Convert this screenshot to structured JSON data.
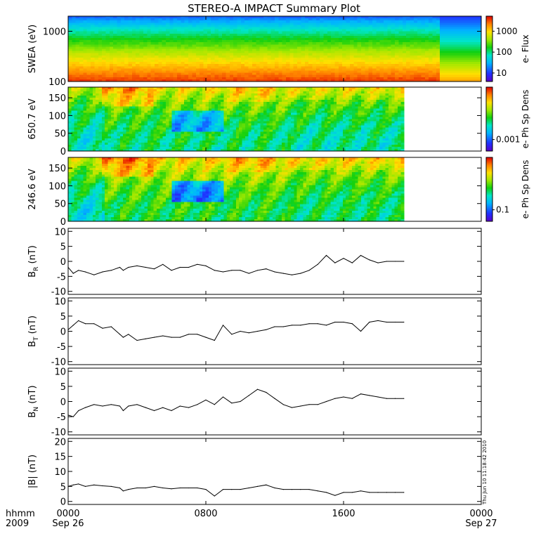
{
  "chart_data": {
    "type": "multi-panel",
    "title": "STEREO-A IMPACT Summary Plot",
    "stamp": "Thu Jun 10 11:18:42 2010",
    "x_axis": {
      "corner_labels": [
        "hhmm",
        "2009"
      ],
      "ticks": [
        {
          "hour": 0,
          "label": "0000",
          "date": "Sep 26"
        },
        {
          "hour": 8,
          "label": "0800",
          "date": ""
        },
        {
          "hour": 16,
          "label": "1600",
          "date": ""
        },
        {
          "hour": 24,
          "label": "0000",
          "date": "Sep 27"
        }
      ],
      "range_hours": [
        0,
        24
      ]
    },
    "panels": [
      {
        "type": "heatmap",
        "ylabel": "SWEA (eV)",
        "yscale": "log",
        "ylim": [
          100,
          2000
        ],
        "ytick_labels": [
          "1000",
          "100"
        ],
        "colorbar": {
          "label": "e- Flux",
          "scale": "log",
          "tick_labels": [
            "1000",
            "100",
            "10"
          ]
        },
        "data_end_hour": 24,
        "transition_hour": 21.6
      },
      {
        "type": "heatmap",
        "ylabel": "650.7 eV",
        "ylim": [
          0,
          180
        ],
        "ytick_labels": [
          "150",
          "100",
          "50",
          "0"
        ],
        "colorbar": {
          "label": "e- Ph Sp Dens",
          "scale": "log",
          "tick_labels": [
            "0.001"
          ]
        },
        "data_end_hour": 19.5
      },
      {
        "type": "heatmap",
        "ylabel": "246.6 eV",
        "ylim": [
          0,
          180
        ],
        "ytick_labels": [
          "150",
          "100",
          "50",
          "0"
        ],
        "colorbar": {
          "label": "e- Ph Sp Dens",
          "scale": "log",
          "tick_labels": [
            "0.1"
          ]
        },
        "data_end_hour": 19.5
      },
      {
        "type": "line",
        "ylabel": "B",
        "ylabel_sub": "R",
        "ylabel_unit": " (nT)",
        "ylim": [
          -11,
          11
        ],
        "ytick_labels": [
          "10",
          "5",
          "0",
          "-5",
          "-10"
        ],
        "series": [
          {
            "x": [
              0,
              0.3,
              0.6,
              1,
              1.5,
              2,
              2.5,
              3,
              3.2,
              3.5,
              4,
              4.5,
              5,
              5.5,
              6,
              6.5,
              7,
              7.5,
              8,
              8.5,
              9,
              9.5,
              10,
              10.5,
              11,
              11.5,
              12,
              12.5,
              13,
              13.5,
              14,
              14.5,
              15,
              15.5,
              16,
              16.5,
              17,
              17.5,
              18,
              18.5,
              19,
              19.5
            ],
            "y": [
              -2,
              -4,
              -3,
              -3.5,
              -4.5,
              -3.5,
              -3,
              -2,
              -3,
              -2,
              -1.5,
              -2,
              -2.5,
              -1,
              -3,
              -2,
              -2,
              -1,
              -1.5,
              -3,
              -3.5,
              -3,
              -3,
              -4,
              -3,
              -2.5,
              -3.5,
              -4,
              -4.5,
              -4,
              -3,
              -1,
              2,
              -0.5,
              1,
              -0.5,
              2,
              0.5,
              -0.5,
              0,
              0,
              0
            ]
          }
        ]
      },
      {
        "type": "line",
        "ylabel": "B",
        "ylabel_sub": "T",
        "ylabel_unit": " (nT)",
        "ylim": [
          -11,
          11
        ],
        "ytick_labels": [
          "10",
          "5",
          "0",
          "-5",
          "-10"
        ],
        "series": [
          {
            "x": [
              0,
              0.3,
              0.6,
              1,
              1.5,
              2,
              2.5,
              3,
              3.2,
              3.5,
              4,
              4.5,
              5,
              5.5,
              6,
              6.5,
              7,
              7.5,
              8,
              8.5,
              9,
              9.5,
              10,
              10.5,
              11,
              11.5,
              12,
              12.5,
              13,
              13.5,
              14,
              14.5,
              15,
              15.5,
              16,
              16.5,
              17,
              17.5,
              18,
              18.5,
              19,
              19.5
            ],
            "y": [
              0.5,
              2,
              3.5,
              2.5,
              2.5,
              1,
              1.5,
              -1,
              -2,
              -1,
              -3,
              -2.5,
              -2,
              -1.5,
              -2,
              -2,
              -1,
              -1,
              -2,
              -3,
              2,
              -1,
              0,
              -0.5,
              0,
              0.5,
              1.5,
              1.5,
              2,
              2,
              2.5,
              2.5,
              2,
              3,
              3,
              2.5,
              0,
              3,
              3.5,
              3,
              3,
              3
            ]
          }
        ]
      },
      {
        "type": "line",
        "ylabel": "B",
        "ylabel_sub": "N",
        "ylabel_unit": " (nT)",
        "ylim": [
          -11,
          11
        ],
        "ytick_labels": [
          "10",
          "5",
          "0",
          "-5",
          "-10"
        ],
        "series": [
          {
            "x": [
              0,
              0.3,
              0.6,
              1,
              1.5,
              2,
              2.5,
              3,
              3.2,
              3.5,
              4,
              4.5,
              5,
              5.5,
              6,
              6.5,
              7,
              7.5,
              8,
              8.5,
              9,
              9.5,
              10,
              10.5,
              11,
              11.5,
              12,
              12.5,
              13,
              13.5,
              14,
              14.5,
              15,
              15.5,
              16,
              16.5,
              17,
              17.5,
              18,
              18.5,
              19,
              19.5
            ],
            "y": [
              -4.5,
              -5,
              -3,
              -2,
              -1,
              -1.5,
              -1,
              -1.5,
              -3,
              -1.5,
              -1,
              -2,
              -3,
              -2,
              -3,
              -1.5,
              -2,
              -1,
              0.5,
              -1,
              1.5,
              -0.5,
              0,
              2,
              4,
              3,
              1,
              -1,
              -2,
              -1.5,
              -1,
              -1,
              0,
              1,
              1.5,
              1,
              2.5,
              2,
              1.5,
              1,
              1,
              1
            ]
          }
        ]
      },
      {
        "type": "line",
        "ylabel": "|B|",
        "ylabel_sub": "",
        "ylabel_unit": " (nT)",
        "ylim": [
          -1,
          21
        ],
        "ytick_labels": [
          "20",
          "15",
          "10",
          "5",
          "0"
        ],
        "series": [
          {
            "x": [
              0,
              0.3,
              0.6,
              1,
              1.5,
              2,
              2.5,
              3,
              3.2,
              3.5,
              4,
              4.5,
              5,
              5.5,
              6,
              6.5,
              7,
              7.5,
              8,
              8.5,
              9,
              9.5,
              10,
              10.5,
              11,
              11.5,
              12,
              12.5,
              13,
              13.5,
              14,
              14.5,
              15,
              15.5,
              16,
              16.5,
              17,
              17.5,
              18,
              18.5,
              19,
              19.5
            ],
            "y": [
              5,
              5.5,
              5.8,
              5,
              5.5,
              5.2,
              5,
              4.5,
              3.5,
              4,
              4.5,
              4.5,
              5,
              4.5,
              4.2,
              4.5,
              4.5,
              4.5,
              4,
              1.8,
              4,
              4,
              4,
              4.5,
              5,
              5.5,
              4.5,
              4,
              4,
              4,
              4,
              3.5,
              3,
              2,
              3,
              3,
              3.5,
              3,
              3,
              3,
              3,
              3
            ]
          }
        ]
      }
    ]
  }
}
